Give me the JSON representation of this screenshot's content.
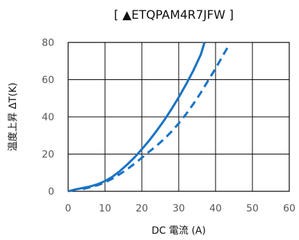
{
  "chart_data": {
    "type": "line",
    "title": "[ ▲ETQPAM4R7JFW ]",
    "xlabel": "DC 電流 (A)",
    "ylabel": "温度上昇 ΔT(K)",
    "xlim": [
      0,
      60
    ],
    "ylim": [
      0,
      80
    ],
    "xticks": [
      "0",
      "10",
      "20",
      "30",
      "40",
      "50",
      "60"
    ],
    "yticks": [
      "0",
      "20",
      "40",
      "60",
      "80"
    ],
    "grid": true,
    "legend": "none",
    "series": [
      {
        "style": "solid",
        "color": "#1a73c4",
        "x": [
          0,
          2,
          4,
          6,
          8,
          10,
          12,
          14,
          16,
          18,
          20,
          22,
          24,
          26,
          28,
          30,
          32,
          34,
          36,
          37
        ],
        "y": [
          0,
          1,
          1.8,
          2.6,
          3.8,
          5.5,
          7.8,
          10.8,
          14.3,
          18.2,
          22.6,
          27.3,
          32.5,
          38,
          44,
          50.5,
          57.5,
          65,
          73.5,
          80
        ]
      },
      {
        "style": "dashed",
        "color": "#1a73c4",
        "x": [
          4,
          6,
          8,
          10,
          12,
          14,
          16,
          18,
          20,
          22,
          24,
          26,
          28,
          30,
          32,
          34,
          36,
          38,
          40,
          42,
          43.5
        ],
        "y": [
          1.2,
          2.2,
          3.3,
          4.8,
          6.8,
          9.2,
          11.8,
          14.8,
          18,
          21.3,
          24.5,
          28,
          32,
          36.5,
          41.5,
          47,
          53,
          59.5,
          66,
          73,
          78
        ]
      }
    ]
  }
}
